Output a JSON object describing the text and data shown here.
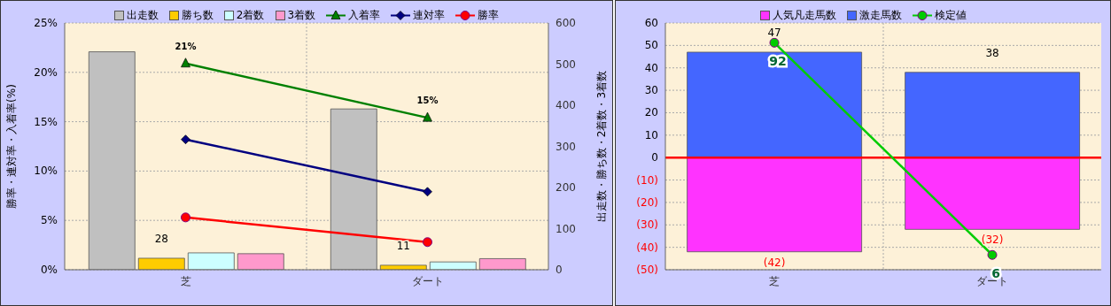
{
  "chart_data": [
    {
      "type": "bar",
      "categories": [
        "芝",
        "ダート"
      ],
      "ylabel": "勝率・連対率・入着率(%)",
      "y2label": "出走数・勝ち数・2着数・3着数",
      "ylim": [
        0,
        25
      ],
      "yticks": [
        {
          "value": 0,
          "label": "0%"
        },
        {
          "value": 5,
          "label": "5%"
        },
        {
          "value": 10,
          "label": "10%"
        },
        {
          "value": 15,
          "label": "15%"
        },
        {
          "value": 20,
          "label": "20%"
        },
        {
          "value": 25,
          "label": "25%"
        }
      ],
      "y2lim": [
        0,
        600
      ],
      "y2ticks": [
        0,
        100,
        200,
        300,
        400,
        500,
        600
      ],
      "grid": true,
      "legend": "top",
      "series": [
        {
          "name": "出走数",
          "axis": "y2",
          "color": "#c0c0c0",
          "values": [
            530,
            391
          ]
        },
        {
          "name": "勝ち数",
          "axis": "y2",
          "color": "#ffcc00",
          "values": [
            28,
            11
          ],
          "value_labels": [
            "28",
            "11"
          ]
        },
        {
          "name": "2着数",
          "axis": "y2",
          "color": "#ccffff",
          "values": [
            41,
            19
          ]
        },
        {
          "name": "3着数",
          "axis": "y2",
          "color": "#ff99cc",
          "values": [
            39,
            27
          ]
        },
        {
          "name": "入着率",
          "type": "line",
          "color": "#008000",
          "marker": "triangle",
          "values": [
            20.9,
            15.4
          ],
          "value_labels": [
            "21%",
            "15%"
          ]
        },
        {
          "name": "連対率",
          "type": "line",
          "color": "#000080",
          "marker": "diamond",
          "values": [
            13.2,
            7.9
          ]
        },
        {
          "name": "勝率",
          "type": "line",
          "color": "#ff0000",
          "marker": "circle",
          "values": [
            5.3,
            2.8
          ]
        }
      ]
    },
    {
      "type": "bar",
      "categories": [
        "芝",
        "ダート"
      ],
      "stacked": true,
      "ylim": [
        -50,
        60
      ],
      "yticks": [
        {
          "value": -50,
          "label": "(50)"
        },
        {
          "value": -40,
          "label": "(40)"
        },
        {
          "value": -30,
          "label": "(30)"
        },
        {
          "value": -20,
          "label": "(20)"
        },
        {
          "value": -10,
          "label": "(10)"
        },
        0,
        10,
        20,
        30,
        40,
        50,
        60
      ],
      "tick_labels": "xy",
      "grid": true,
      "legend": "top",
      "ref_lines": [
        {
          "axis": "y",
          "value": 0,
          "color": "#ff0000"
        }
      ],
      "series": [
        {
          "name": "人気凡走馬数",
          "color": "#ff33ff",
          "values": [
            -42,
            -32
          ],
          "value_labels": [
            "(42)",
            "(32)"
          ]
        },
        {
          "name": "激走馬数",
          "color": "#4466ff",
          "values": [
            47,
            38
          ],
          "value_labels": [
            "47",
            "38"
          ]
        },
        {
          "name": "検定値",
          "type": "line",
          "axis": "y2",
          "color": "#00cc00",
          "marker": "circle",
          "values": [
            92,
            6
          ],
          "value_labels": [
            "92",
            "6"
          ]
        }
      ]
    }
  ]
}
